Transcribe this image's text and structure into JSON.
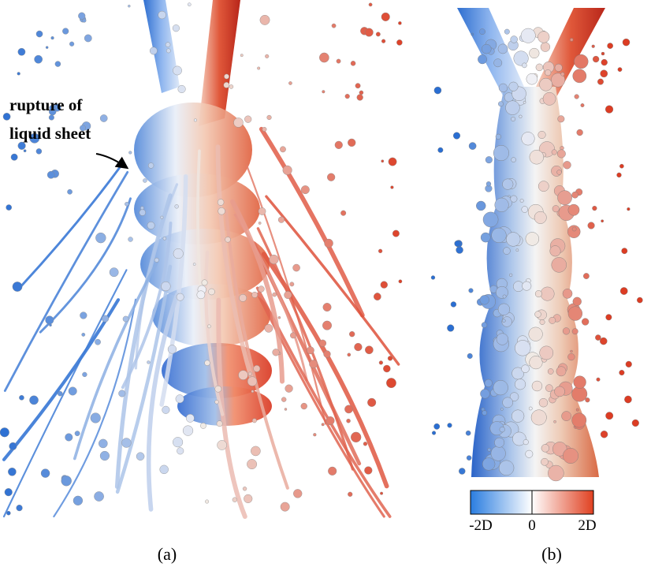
{
  "panels": [
    {
      "label": "(a)",
      "annotation": [
        "rupture of",
        "liquid sheet"
      ]
    },
    {
      "label": "(b)"
    }
  ],
  "colorbar": {
    "tick_labels": [
      "-2D",
      "0",
      "2D"
    ]
  }
}
